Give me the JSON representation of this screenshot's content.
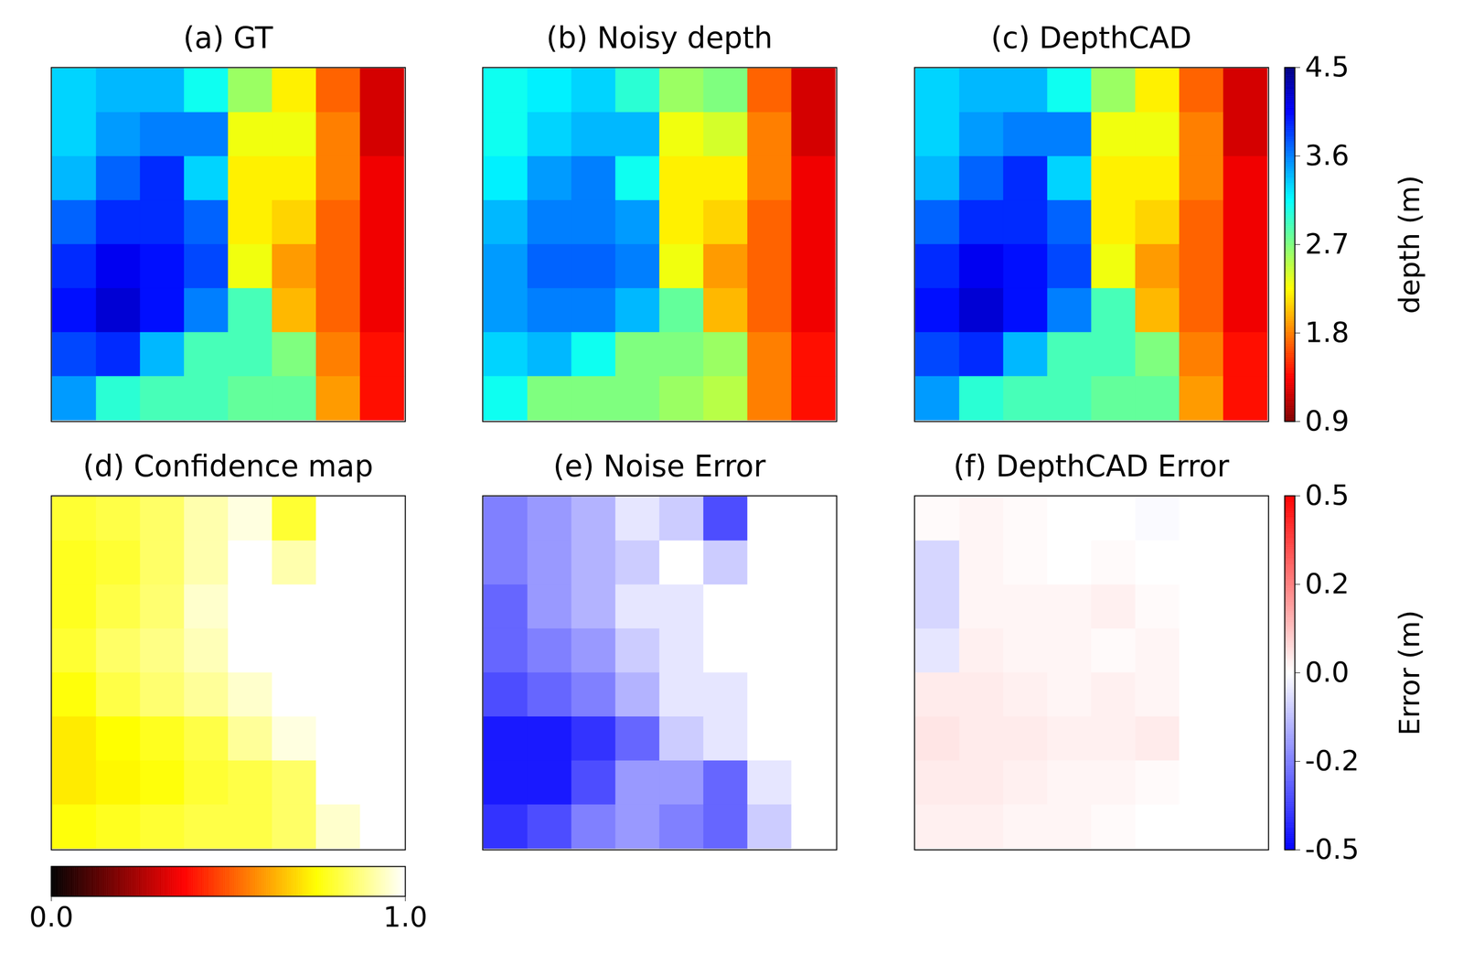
{
  "chart_data": [
    {
      "type": "heatmap",
      "title": "(a) GT",
      "tick_labels": false,
      "color_range": [
        0.9,
        4.5
      ],
      "cells": [
        [
          3.3,
          3.4,
          3.4,
          3.1,
          2.6,
          2.2,
          1.7,
          1.2
        ],
        [
          3.3,
          3.5,
          3.6,
          3.6,
          2.3,
          2.3,
          1.8,
          1.2
        ],
        [
          3.4,
          3.7,
          3.9,
          3.3,
          2.2,
          2.2,
          1.8,
          1.3
        ],
        [
          3.7,
          3.9,
          3.9,
          3.7,
          2.2,
          2.1,
          1.7,
          1.3
        ],
        [
          3.9,
          4.1,
          4.0,
          3.8,
          2.3,
          1.9,
          1.7,
          1.3
        ],
        [
          4.0,
          4.2,
          4.0,
          3.6,
          2.9,
          2.0,
          1.7,
          1.3
        ],
        [
          3.8,
          3.9,
          3.4,
          2.9,
          2.9,
          2.7,
          1.8,
          1.4
        ],
        [
          3.5,
          3.0,
          2.9,
          2.9,
          2.8,
          2.8,
          1.9,
          1.4
        ]
      ]
    },
    {
      "type": "heatmap",
      "title": "(b) Noisy depth",
      "tick_labels": false,
      "color_range": [
        0.9,
        4.5
      ],
      "cells": [
        [
          3.1,
          3.2,
          3.3,
          3.0,
          2.6,
          2.7,
          1.7,
          1.2
        ],
        [
          3.1,
          3.3,
          3.4,
          3.4,
          2.3,
          2.4,
          1.8,
          1.2
        ],
        [
          3.2,
          3.5,
          3.6,
          3.1,
          2.2,
          2.2,
          1.8,
          1.3
        ],
        [
          3.4,
          3.6,
          3.6,
          3.5,
          2.2,
          2.1,
          1.7,
          1.3
        ],
        [
          3.5,
          3.7,
          3.7,
          3.6,
          2.3,
          1.9,
          1.7,
          1.3
        ],
        [
          3.5,
          3.6,
          3.6,
          3.4,
          2.8,
          2.0,
          1.7,
          1.3
        ],
        [
          3.3,
          3.4,
          3.1,
          2.7,
          2.7,
          2.6,
          1.8,
          1.4
        ],
        [
          3.1,
          2.7,
          2.7,
          2.7,
          2.6,
          2.5,
          1.8,
          1.4
        ]
      ]
    },
    {
      "type": "heatmap",
      "title": "(c) DepthCAD",
      "tick_labels": false,
      "color_range": [
        0.9,
        4.5
      ],
      "colorbar": {
        "ticks": [
          0.9,
          1.8,
          2.7,
          3.6,
          4.5
        ],
        "label": "depth (m)"
      },
      "cells": [
        [
          3.3,
          3.4,
          3.4,
          3.1,
          2.6,
          2.2,
          1.7,
          1.2
        ],
        [
          3.3,
          3.5,
          3.6,
          3.6,
          2.3,
          2.3,
          1.8,
          1.2
        ],
        [
          3.4,
          3.7,
          3.9,
          3.3,
          2.2,
          2.2,
          1.8,
          1.3
        ],
        [
          3.7,
          3.9,
          3.9,
          3.7,
          2.2,
          2.1,
          1.7,
          1.3
        ],
        [
          3.9,
          4.1,
          4.0,
          3.8,
          2.3,
          1.9,
          1.7,
          1.3
        ],
        [
          4.0,
          4.2,
          4.0,
          3.6,
          2.9,
          2.0,
          1.7,
          1.3
        ],
        [
          3.8,
          3.9,
          3.4,
          2.9,
          2.9,
          2.7,
          1.8,
          1.4
        ],
        [
          3.5,
          3.0,
          2.9,
          2.9,
          2.8,
          2.8,
          1.9,
          1.4
        ]
      ]
    },
    {
      "type": "heatmap",
      "title": "(d) Confidence map",
      "tick_labels": false,
      "color_range": [
        0,
        1
      ],
      "colorbar": {
        "ticks": [
          {
            "value": 0,
            "label": "0.0"
          },
          {
            "value": 1,
            "label": "1.0"
          }
        ],
        "orientation": "horizontal"
      },
      "cells": [
        [
          0.8,
          0.82,
          0.85,
          0.92,
          0.97,
          0.8,
          1.0,
          1.0
        ],
        [
          0.78,
          0.8,
          0.85,
          0.92,
          1.0,
          0.92,
          1.0,
          1.0
        ],
        [
          0.78,
          0.82,
          0.86,
          0.95,
          1.0,
          1.0,
          1.0,
          1.0
        ],
        [
          0.8,
          0.85,
          0.88,
          0.93,
          1.0,
          1.0,
          1.0,
          1.0
        ],
        [
          0.76,
          0.82,
          0.86,
          0.9,
          0.95,
          1.0,
          1.0,
          1.0
        ],
        [
          0.72,
          0.75,
          0.78,
          0.82,
          0.9,
          0.97,
          1.0,
          1.0
        ],
        [
          0.72,
          0.74,
          0.76,
          0.8,
          0.82,
          0.85,
          1.0,
          1.0
        ],
        [
          0.76,
          0.78,
          0.8,
          0.82,
          0.82,
          0.85,
          0.95,
          1.0
        ]
      ]
    },
    {
      "type": "heatmap",
      "title": "(e) Noise Error",
      "tick_labels": false,
      "color_range": [
        -0.5,
        0.5
      ],
      "cells": [
        [
          -0.25,
          -0.2,
          -0.15,
          -0.05,
          -0.1,
          -0.35,
          0,
          0
        ],
        [
          -0.25,
          -0.2,
          -0.15,
          -0.1,
          0,
          -0.1,
          0,
          0
        ],
        [
          -0.3,
          -0.2,
          -0.15,
          -0.05,
          -0.05,
          0,
          0,
          0
        ],
        [
          -0.3,
          -0.25,
          -0.2,
          -0.1,
          -0.05,
          0,
          0,
          0
        ],
        [
          -0.35,
          -0.3,
          -0.25,
          -0.15,
          -0.05,
          -0.05,
          0,
          0
        ],
        [
          -0.45,
          -0.45,
          -0.4,
          -0.3,
          -0.1,
          -0.05,
          0,
          0
        ],
        [
          -0.45,
          -0.45,
          -0.35,
          -0.2,
          -0.2,
          -0.3,
          -0.05,
          0
        ],
        [
          -0.4,
          -0.35,
          -0.25,
          -0.2,
          -0.25,
          -0.3,
          -0.1,
          0
        ]
      ]
    },
    {
      "type": "heatmap",
      "title": "(f) DepthCAD Error",
      "tick_labels": false,
      "color_range": [
        -0.5,
        0.5
      ],
      "colorbar": {
        "ticks": [
          -0.5,
          {
            "value": -0.25,
            "label": "-0.2"
          },
          {
            "value": 0,
            "label": "0.0"
          },
          {
            "value": 0.25,
            "label": "0.2"
          },
          0.5
        ],
        "label": "Error (m)"
      },
      "cells": [
        [
          0.01,
          0.02,
          0.01,
          0,
          0,
          -0.01,
          0,
          0
        ],
        [
          -0.08,
          0.02,
          0.01,
          0,
          0.01,
          0,
          0,
          0
        ],
        [
          -0.08,
          0.02,
          0.02,
          0.02,
          0.03,
          0.01,
          0,
          0
        ],
        [
          -0.05,
          0.03,
          0.02,
          0.02,
          0.01,
          0.02,
          0,
          0
        ],
        [
          0.04,
          0.04,
          0.03,
          0.02,
          0.03,
          0.02,
          0,
          0
        ],
        [
          0.05,
          0.04,
          0.04,
          0.03,
          0.03,
          0.04,
          0,
          0
        ],
        [
          0.04,
          0.04,
          0.03,
          0.02,
          0.02,
          0.01,
          0,
          0
        ],
        [
          0.03,
          0.03,
          0.02,
          0.02,
          0.01,
          0,
          0,
          0
        ]
      ]
    }
  ]
}
